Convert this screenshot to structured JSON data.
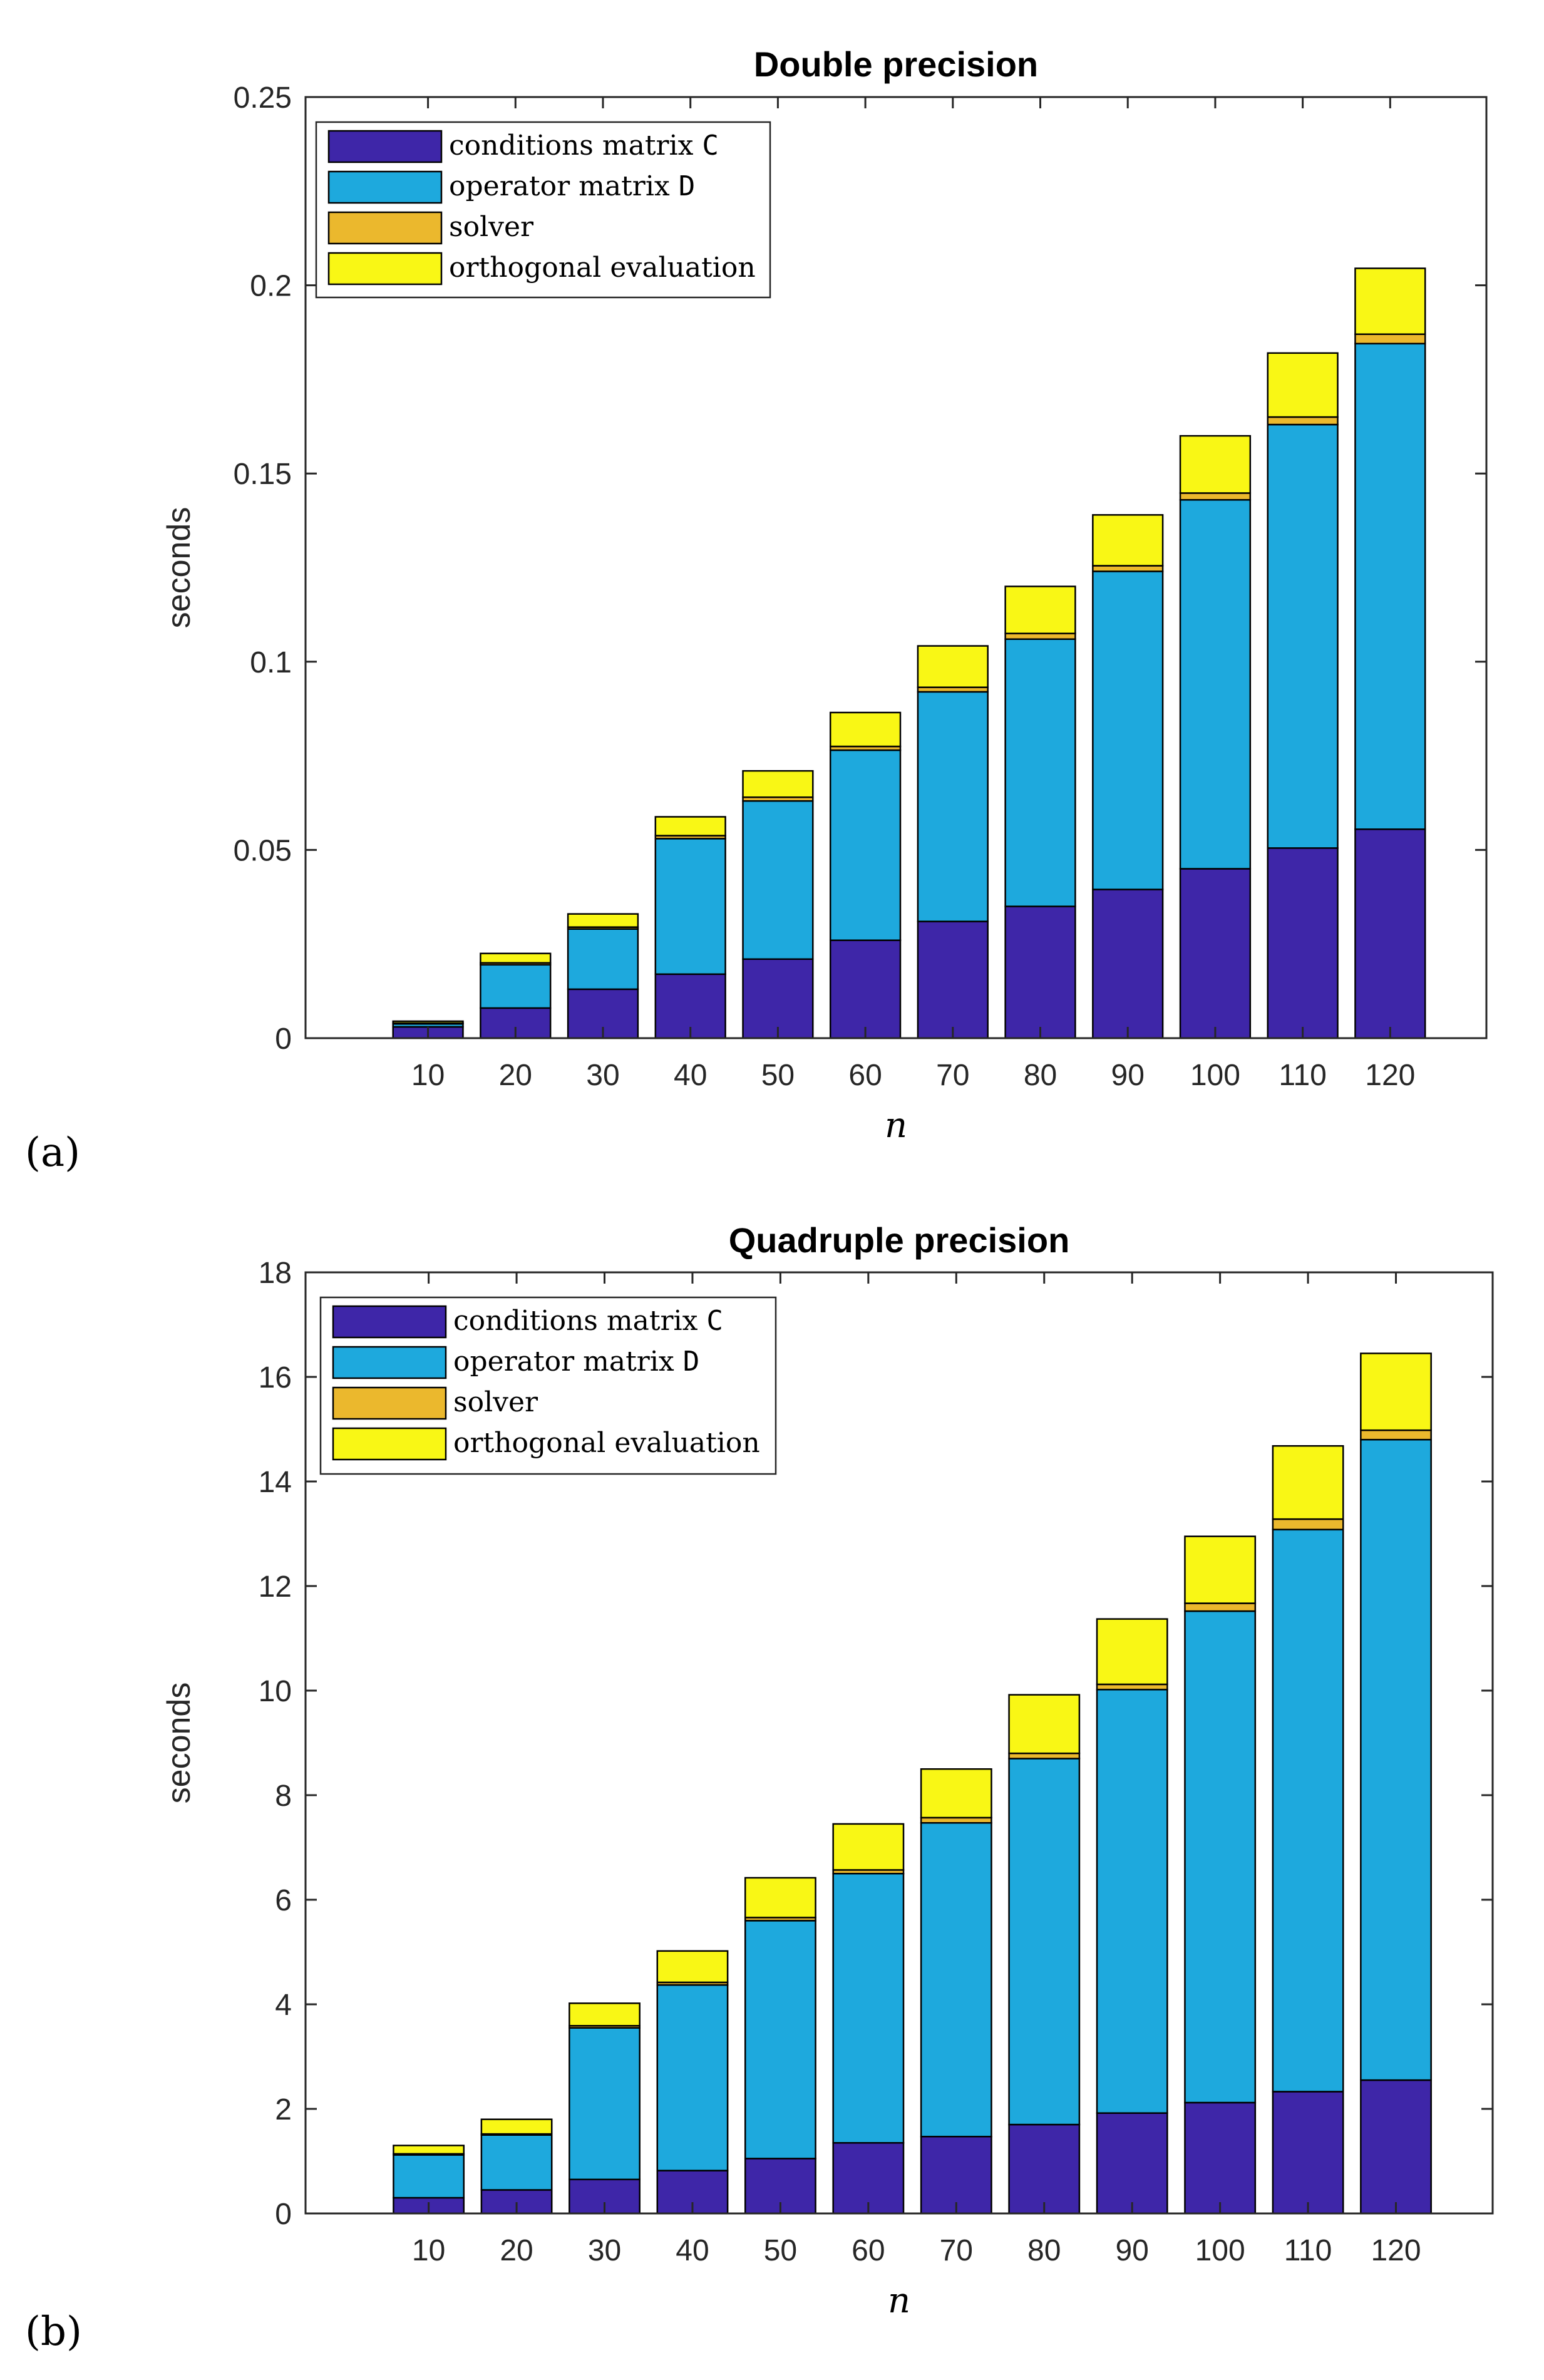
{
  "chart_data": [
    {
      "type": "bar",
      "stacked": true,
      "panel_label": "(a)",
      "title": "Double precision",
      "xlabel": "n",
      "ylabel": "seconds",
      "categories": [
        "10",
        "20",
        "30",
        "40",
        "50",
        "60",
        "70",
        "80",
        "90",
        "100",
        "110",
        "120"
      ],
      "ylim": [
        0,
        0.25
      ],
      "yticks": [
        0,
        0.05,
        0.1,
        0.15,
        0.2,
        0.25
      ],
      "ytick_labels": [
        "0",
        "0.05",
        "0.1",
        "0.15",
        "0.2",
        "0.25"
      ],
      "legend_position": "top-left",
      "series": [
        {
          "name": "conditions matrix",
          "symbol": "C",
          "color": "#3e26a8",
          "values": [
            0.003,
            0.008,
            0.013,
            0.017,
            0.021,
            0.026,
            0.031,
            0.035,
            0.0395,
            0.045,
            0.0505,
            0.0555
          ]
        },
        {
          "name": "operator matrix",
          "symbol": "D",
          "color": "#1ea9dd",
          "values": [
            0.0008,
            0.0115,
            0.016,
            0.036,
            0.042,
            0.0505,
            0.061,
            0.071,
            0.0845,
            0.098,
            0.1125,
            0.129
          ]
        },
        {
          "name": "solver",
          "symbol": "",
          "color": "#ebb82d",
          "values": [
            0.0002,
            0.0005,
            0.0005,
            0.0008,
            0.001,
            0.001,
            0.0012,
            0.0015,
            0.0015,
            0.0018,
            0.002,
            0.0025
          ]
        },
        {
          "name": "orthogonal evaluation",
          "symbol": "",
          "color": "#f9f715",
          "values": [
            0.0005,
            0.0025,
            0.0035,
            0.005,
            0.007,
            0.009,
            0.011,
            0.0125,
            0.0135,
            0.0152,
            0.017,
            0.0175
          ]
        }
      ]
    },
    {
      "type": "bar",
      "stacked": true,
      "panel_label": "(b)",
      "title": "Quadruple precision",
      "xlabel": "n",
      "ylabel": "seconds",
      "categories": [
        "10",
        "20",
        "30",
        "40",
        "50",
        "60",
        "70",
        "80",
        "90",
        "100",
        "110",
        "120"
      ],
      "ylim": [
        0,
        18
      ],
      "yticks": [
        0,
        2,
        4,
        6,
        8,
        10,
        12,
        14,
        16,
        18
      ],
      "ytick_labels": [
        "0",
        "2",
        "4",
        "6",
        "8",
        "10",
        "12",
        "14",
        "16",
        "18"
      ],
      "legend_position": "top-left",
      "series": [
        {
          "name": "conditions matrix",
          "symbol": "C",
          "color": "#3e26a8",
          "values": [
            0.3,
            0.45,
            0.65,
            0.82,
            1.05,
            1.35,
            1.47,
            1.7,
            1.92,
            2.12,
            2.33,
            2.55
          ]
        },
        {
          "name": "operator matrix",
          "symbol": "D",
          "color": "#1ea9dd",
          "values": [
            0.82,
            1.05,
            2.9,
            3.55,
            4.55,
            5.15,
            6.0,
            7.0,
            8.1,
            9.4,
            10.75,
            12.25
          ]
        },
        {
          "name": "solver",
          "symbol": "",
          "color": "#ebb82d",
          "values": [
            0.02,
            0.02,
            0.04,
            0.05,
            0.06,
            0.07,
            0.1,
            0.1,
            0.1,
            0.15,
            0.2,
            0.18
          ]
        },
        {
          "name": "orthogonal evaluation",
          "symbol": "",
          "color": "#f9f715",
          "values": [
            0.16,
            0.28,
            0.43,
            0.6,
            0.76,
            0.88,
            0.93,
            1.12,
            1.25,
            1.28,
            1.4,
            1.47
          ]
        }
      ]
    }
  ]
}
